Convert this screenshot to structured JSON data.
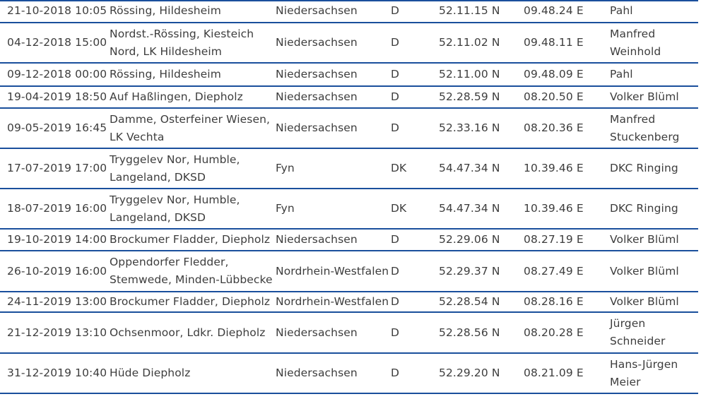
{
  "rows": [
    {
      "date": "21-10-2018 10:05",
      "location": [
        "Rössing, Hildesheim"
      ],
      "region": "Niedersachsen",
      "country": "D",
      "lat": "52.11.15 N",
      "lon": "09.48.24 E",
      "observer": [
        "Pahl"
      ]
    },
    {
      "date": "04-12-2018 15:00",
      "location": [
        "Nordst.-Rössing, Kiesteich",
        "Nord, LK Hildesheim"
      ],
      "region": "Niedersachsen",
      "country": "D",
      "lat": "52.11.02 N",
      "lon": "09.48.11 E",
      "observer": [
        "Manfred",
        "Weinhold"
      ]
    },
    {
      "date": "09-12-2018 00:00",
      "location": [
        "Rössing, Hildesheim"
      ],
      "region": "Niedersachsen",
      "country": "D",
      "lat": "52.11.00 N",
      "lon": "09.48.09 E",
      "observer": [
        "Pahl"
      ]
    },
    {
      "date": "19-04-2019 18:50",
      "location": [
        "Auf Haßlingen, Diepholz"
      ],
      "region": "Niedersachsen",
      "country": "D",
      "lat": "52.28.59 N",
      "lon": "08.20.50 E",
      "observer": [
        "Volker Blüml"
      ]
    },
    {
      "date": "09-05-2019 16:45",
      "location": [
        "Damme, Osterfeiner Wiesen,",
        "LK Vechta"
      ],
      "region": "Niedersachsen",
      "country": "D",
      "lat": "52.33.16 N",
      "lon": "08.20.36 E",
      "observer": [
        "Manfred",
        "Stuckenberg"
      ]
    },
    {
      "date": "17-07-2019 17:00",
      "location": [
        "Tryggelev Nor, Humble,",
        "Langeland, DKSD"
      ],
      "region": "Fyn",
      "country": "DK",
      "lat": "54.47.34 N",
      "lon": "10.39.46 E",
      "observer": [
        "DKC Ringing"
      ]
    },
    {
      "date": "18-07-2019 16:00",
      "location": [
        "Tryggelev Nor, Humble,",
        "Langeland, DKSD"
      ],
      "region": "Fyn",
      "country": "DK",
      "lat": "54.47.34 N",
      "lon": "10.39.46 E",
      "observer": [
        "DKC Ringing"
      ]
    },
    {
      "date": "19-10-2019 14:00",
      "location": [
        "Brockumer Fladder, Diepholz"
      ],
      "region": "Niedersachsen",
      "country": "D",
      "lat": "52.29.06 N",
      "lon": "08.27.19 E",
      "observer": [
        "Volker Blüml"
      ]
    },
    {
      "date": "26-10-2019 16:00",
      "location": [
        "Oppendorfer Fledder,",
        "Stemwede, Minden-Lübbecke"
      ],
      "region": "Nordrhein-Westfalen",
      "country": "D",
      "lat": "52.29.37 N",
      "lon": "08.27.49 E",
      "observer": [
        "Volker Blüml"
      ]
    },
    {
      "date": "24-11-2019 13:00",
      "location": [
        "Brockumer Fladder, Diepholz"
      ],
      "region": "Nordrhein-Westfalen",
      "country": "D",
      "lat": "52.28.54 N",
      "lon": "08.28.16 E",
      "observer": [
        "Volker Blüml"
      ]
    },
    {
      "date": "21-12-2019 13:10",
      "location": [
        "Ochsenmoor, Ldkr. Diepholz"
      ],
      "region": "Niedersachsen",
      "country": "D",
      "lat": "52.28.56 N",
      "lon": "08.20.28 E",
      "observer": [
        "Jürgen",
        "Schneider"
      ]
    },
    {
      "date": "31-12-2019 10:40",
      "location": [
        "Hüde Diepholz"
      ],
      "region": "Niedersachsen",
      "country": "D",
      "lat": "52.29.20 N",
      "lon": "08.21.09 E",
      "observer": [
        "Hans-Jürgen",
        "Meier"
      ]
    }
  ]
}
